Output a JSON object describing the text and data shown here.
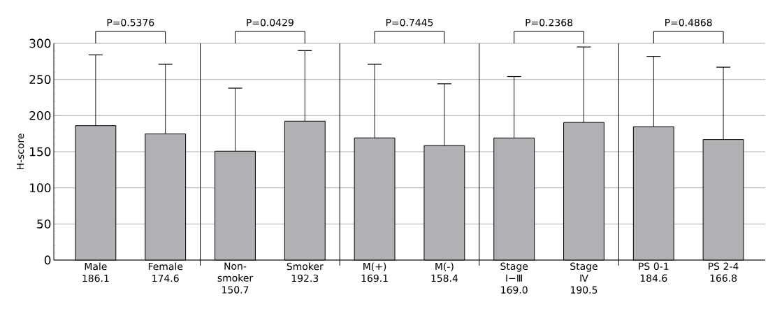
{
  "chart_data": {
    "type": "bar",
    "ylabel": "H-score",
    "categories": [
      "Male",
      "Female",
      "Non-smoker",
      "Smoker",
      "M(+)",
      "M(-)",
      "Stage Ⅰ−Ⅲ",
      "Stage Ⅳ",
      "PS 0-1",
      "PS 2-4"
    ],
    "values": [
      186.1,
      174.6,
      150.7,
      192.3,
      169.1,
      158.4,
      169.0,
      190.5,
      184.6,
      166.8
    ],
    "value_labels": [
      "186.1",
      "174.6",
      "150.7",
      "192.3",
      "169.1",
      "158.4",
      "169.0",
      "190.5",
      "184.6",
      "166.8"
    ],
    "errors": [
      [
        186.1,
        284
      ],
      [
        174.6,
        271
      ],
      [
        150.7,
        238
      ],
      [
        192.3,
        290
      ],
      [
        169.1,
        271
      ],
      [
        158.4,
        244
      ],
      [
        169.0,
        254
      ],
      [
        190.5,
        295
      ],
      [
        184.6,
        282
      ],
      [
        166.8,
        267
      ]
    ],
    "color": "#b0b1b5",
    "ylim": [
      0,
      300
    ],
    "yticks": [
      0,
      50,
      100,
      150,
      200,
      250,
      300
    ],
    "grid": "y",
    "annotations": [
      "P=0.5376",
      "P=0.0429",
      "P=0.7445",
      "P=0.2368",
      "P=0.4868"
    ]
  }
}
